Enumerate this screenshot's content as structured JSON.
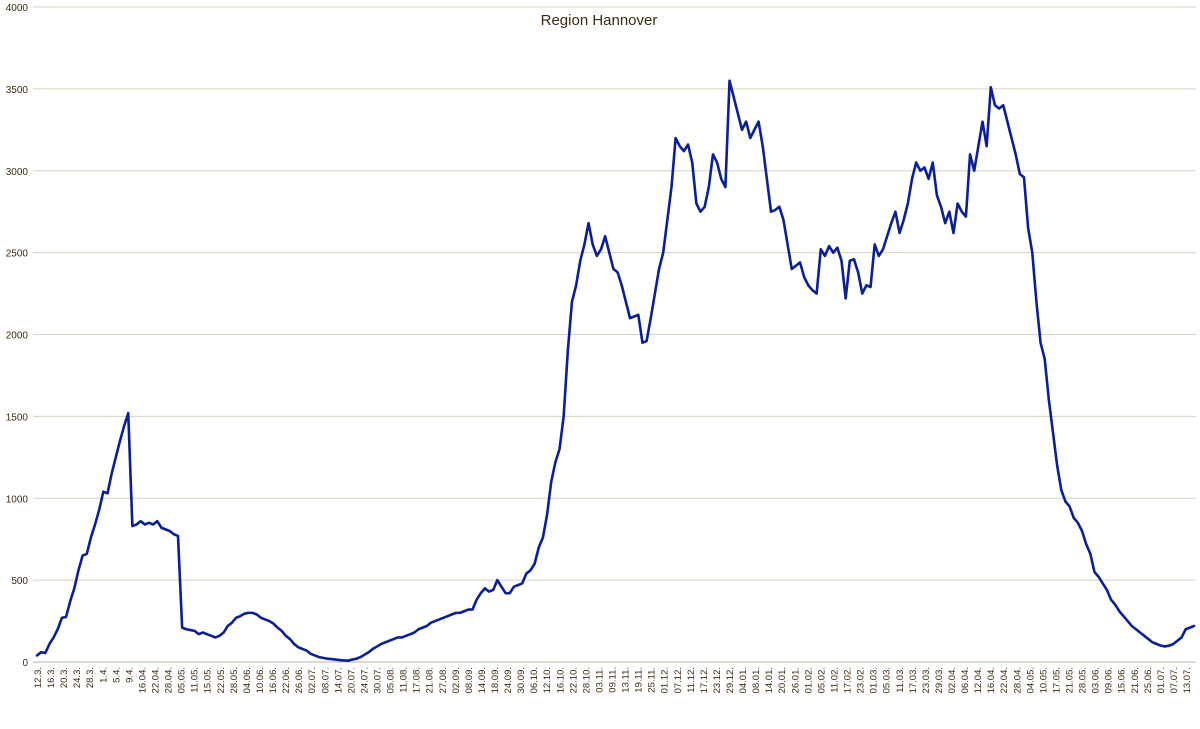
{
  "chart_data": {
    "type": "line",
    "title": "Region Hannover",
    "xlabel": "",
    "ylabel": "",
    "ylim": [
      0,
      4000
    ],
    "yticks": [
      "0",
      "500",
      "1000",
      "1500",
      "2000",
      "2500",
      "3000",
      "3500",
      "4000"
    ],
    "grid": true,
    "legend": "none",
    "line_color": "#0b1f96",
    "xticks": [
      "12.3.",
      "16.3.",
      "20.3.",
      "24.3.",
      "28.3.",
      "1.4.",
      "5.4.",
      "9.4.",
      "16.04.",
      "22.04.",
      "28.04.",
      "05.05.",
      "11.05.",
      "15.05.",
      "22.05.",
      "28.05.",
      "04.06.",
      "10.06.",
      "16.06.",
      "22.06.",
      "26.06.",
      "02.07.",
      "08.07.",
      "14.07.",
      "20.07.",
      "24.07.",
      "30.07.",
      "05.08.",
      "11.08.",
      "17.08.",
      "21.08.",
      "27.08.",
      "02.09.",
      "08.09.",
      "14.09.",
      "18.09.",
      "24.09.",
      "30.09.",
      "06.10.",
      "12.10.",
      "16.10.",
      "22.10.",
      "28.10.",
      "03.11.",
      "09.11.",
      "13.11.",
      "19.11.",
      "25.11.",
      "01.12.",
      "07.12.",
      "11.12.",
      "17.12.",
      "23.12.",
      "29.12.",
      "04.01.",
      "08.01.",
      "14.01.",
      "20.01.",
      "26.01.",
      "01.02.",
      "05.02.",
      "11.02.",
      "17.02.",
      "23.02.",
      "01.03.",
      "05.03.",
      "11.03.",
      "17.03.",
      "23.03.",
      "29.03.",
      "02.04.",
      "06.04.",
      "12.04.",
      "16.04.",
      "22.04.",
      "28.04.",
      "04.05.",
      "10.05.",
      "17.05.",
      "21.05.",
      "28.05.",
      "03.06.",
      "09.06.",
      "15.06.",
      "21.06.",
      "25.06.",
      "01.07.",
      "07.07.",
      "13.07."
    ],
    "series": [
      {
        "values": [
          40,
          60,
          55,
          110,
          150,
          200,
          270,
          275,
          370,
          450,
          560,
          650,
          660,
          760,
          840,
          930,
          1040,
          1030,
          1150,
          1250,
          1350,
          1440,
          1520,
          830,
          840,
          860,
          840,
          850,
          840,
          860,
          820,
          810,
          800,
          780,
          770,
          210,
          200,
          195,
          190,
          170,
          180,
          170,
          160,
          150,
          160,
          180,
          220,
          240,
          270,
          280,
          295,
          300,
          300,
          290,
          270,
          260,
          250,
          235,
          210,
          190,
          160,
          140,
          110,
          90,
          80,
          70,
          50,
          40,
          30,
          25,
          20,
          18,
          15,
          12,
          10,
          8,
          15,
          20,
          30,
          45,
          60,
          80,
          95,
          110,
          120,
          130,
          140,
          150,
          150,
          160,
          170,
          180,
          200,
          210,
          220,
          240,
          250,
          260,
          270,
          280,
          290,
          300,
          300,
          310,
          320,
          320,
          380,
          420,
          450,
          430,
          440,
          500,
          460,
          420,
          420,
          460,
          470,
          480,
          540,
          560,
          600,
          700,
          760,
          900,
          1100,
          1220,
          1300,
          1500,
          1900,
          2200,
          2300,
          2450,
          2550,
          2680,
          2550,
          2480,
          2520,
          2600,
          2500,
          2400,
          2380,
          2300,
          2200,
          2100,
          2110,
          2120,
          1950,
          1960,
          2100,
          2250,
          2400,
          2500,
          2700,
          2900,
          3200,
          3150,
          3120,
          3160,
          3050,
          2800,
          2750,
          2780,
          2900,
          3100,
          3050,
          2950,
          2900,
          3550,
          3450,
          3350,
          3250,
          3300,
          3200,
          3250,
          3300,
          3150,
          2950,
          2750,
          2760,
          2780,
          2700,
          2550,
          2400,
          2420,
          2440,
          2350,
          2300,
          2270,
          2250,
          2520,
          2480,
          2540,
          2500,
          2530,
          2450,
          2220,
          2450,
          2460,
          2380,
          2250,
          2300,
          2290,
          2550,
          2480,
          2520,
          2600,
          2680,
          2750,
          2620,
          2700,
          2800,
          2950,
          3050,
          3000,
          3020,
          2950,
          3050,
          2850,
          2780,
          2680,
          2750,
          2620,
          2800,
          2750,
          2720,
          3100,
          3000,
          3150,
          3300,
          3150,
          3510,
          3400,
          3380,
          3400,
          3300,
          3200,
          3100,
          2980,
          2960,
          2650,
          2500,
          2200,
          1950,
          1850,
          1600,
          1400,
          1200,
          1050,
          980,
          950,
          880,
          850,
          800,
          720,
          660,
          550,
          520,
          480,
          440,
          380,
          350,
          310,
          280,
          250,
          220,
          200,
          180,
          160,
          140,
          120,
          110,
          100,
          95,
          100,
          110,
          130,
          150,
          200,
          210,
          220
        ]
      }
    ]
  }
}
